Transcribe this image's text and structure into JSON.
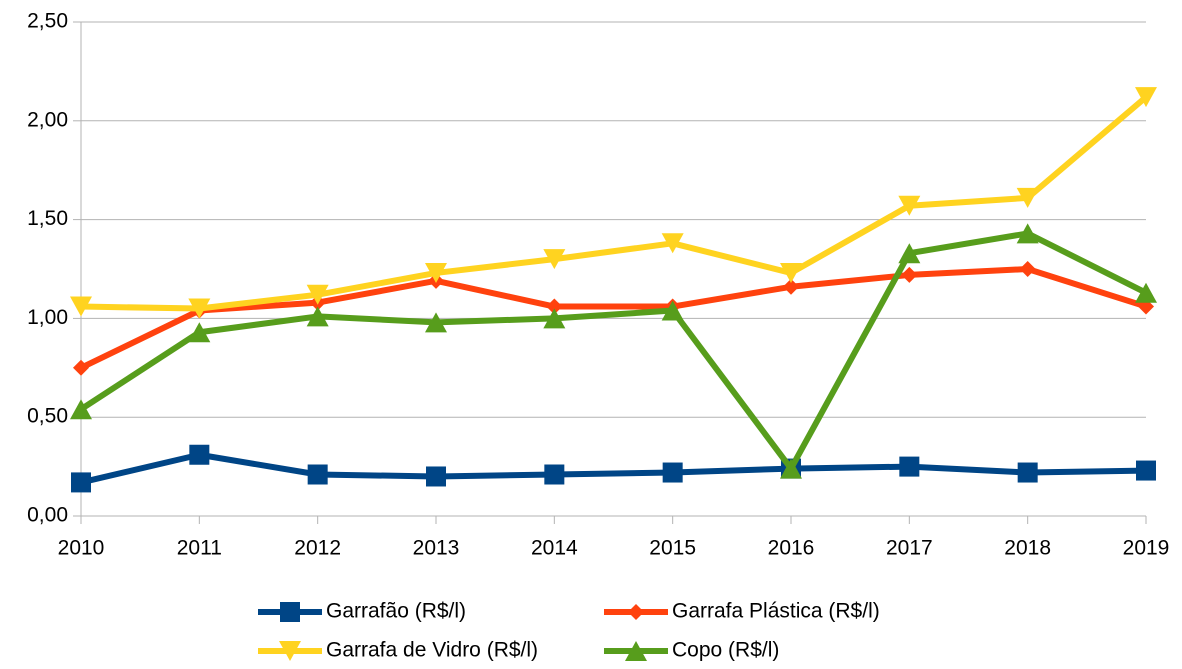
{
  "chart_data": {
    "type": "line",
    "categories": [
      "2010",
      "2011",
      "2012",
      "2013",
      "2014",
      "2015",
      "2016",
      "2017",
      "2018",
      "2019"
    ],
    "series": [
      {
        "name": "Garrafão (R$/l)",
        "color": "#004586",
        "marker": "square",
        "values": [
          0.17,
          0.31,
          0.21,
          0.2,
          0.21,
          0.22,
          0.24,
          0.25,
          0.22,
          0.23
        ]
      },
      {
        "name": "Garrafa Plástica (R$/l)",
        "color": "#ff420e",
        "marker": "diamond",
        "values": [
          0.75,
          1.04,
          1.08,
          1.19,
          1.06,
          1.06,
          1.16,
          1.22,
          1.25,
          1.06
        ]
      },
      {
        "name": "Garrafa de Vidro (R$/l)",
        "color": "#ffd320",
        "marker": "triangle-down",
        "values": [
          1.06,
          1.05,
          1.12,
          1.23,
          1.3,
          1.38,
          1.23,
          1.57,
          1.61,
          2.12
        ]
      },
      {
        "name": "Copo (R$/l)",
        "color": "#579d1c",
        "marker": "triangle-up",
        "values": [
          0.54,
          0.93,
          1.01,
          0.98,
          1.0,
          1.04,
          0.24,
          1.33,
          1.43,
          1.13
        ]
      }
    ],
    "ylim": [
      0,
      2.5
    ],
    "yticks": [
      {
        "value": 0,
        "label": "0,00"
      },
      {
        "value": 0.5,
        "label": "0,50"
      },
      {
        "value": 1,
        "label": "1,00"
      },
      {
        "value": 1.5,
        "label": "1,50"
      },
      {
        "value": 2,
        "label": "2,00"
      },
      {
        "value": 2.5,
        "label": "2,50"
      }
    ],
    "grid": true,
    "legend": "bottom"
  }
}
